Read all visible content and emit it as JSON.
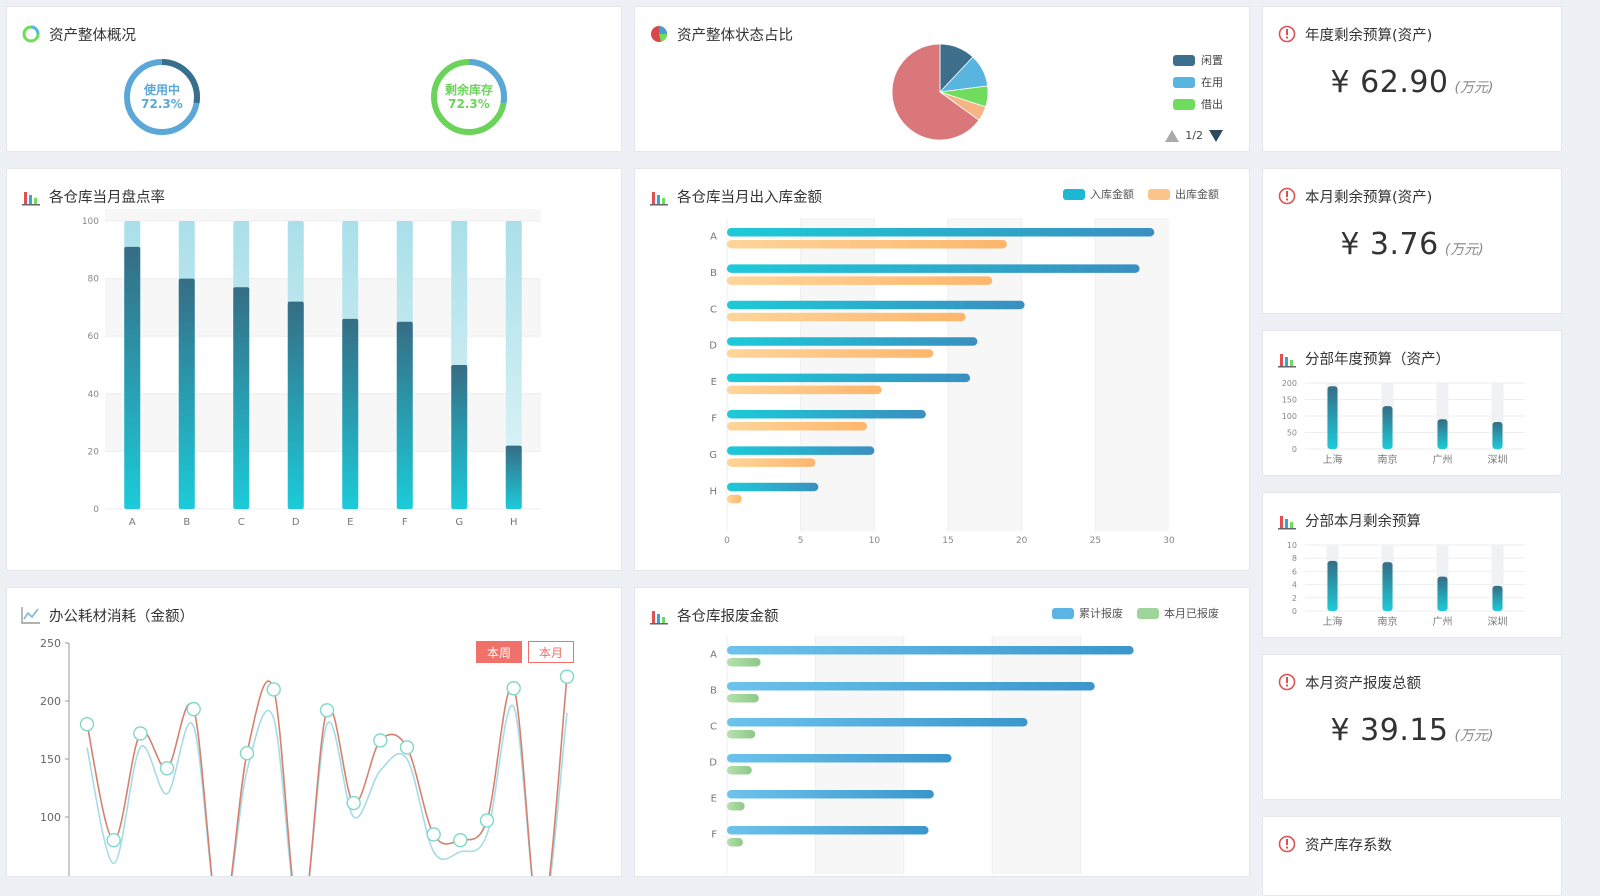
{
  "overview": {
    "title": "资产整体概况",
    "rings": [
      {
        "label": "使用中",
        "value_text": "72.3%",
        "value": 72.3,
        "color": "#5ba8d8",
        "dark": "#3a6f8c"
      },
      {
        "label": "剩余库存",
        "value_text": "72.3%",
        "value": 72.3,
        "color": "#6cd35a",
        "dark": "#5ba8d8"
      }
    ]
  },
  "status_pie": {
    "title": "资产整体状态占比",
    "legend": [
      {
        "name": "闲置",
        "color": "#3d6e8c"
      },
      {
        "name": "在用",
        "color": "#5ab4e0"
      },
      {
        "name": "借出",
        "color": "#6fdc5e"
      }
    ],
    "page_text": "1/2",
    "slices": [
      {
        "value": 12,
        "color": "#3d6e8c"
      },
      {
        "value": 11,
        "color": "#5ab4e0"
      },
      {
        "value": 7,
        "color": "#6fdc5e"
      },
      {
        "value": 5,
        "color": "#f6b485"
      },
      {
        "value": 65,
        "color": "#d9777b"
      }
    ]
  },
  "budgets": [
    {
      "title": "年度剩余预算(资产)",
      "amount": "¥ 62.90",
      "unit": "(万元)"
    },
    {
      "title": "本月剩余预算(资产)",
      "amount": "¥ 3.76",
      "unit": "(万元)"
    },
    {
      "title": "本月资产报废总额",
      "amount": "¥ 39.15",
      "unit": "(万元)"
    },
    {
      "title": "资产库存系数"
    }
  ],
  "inventory_rate": {
    "title": "各仓库当月盘点率",
    "chart_data": {
      "type": "bar",
      "categories": [
        "A",
        "B",
        "C",
        "D",
        "E",
        "F",
        "G",
        "H"
      ],
      "values": [
        91,
        80,
        77,
        72,
        66,
        65,
        50,
        22
      ],
      "max": 100,
      "ylim": [
        0,
        100
      ],
      "yticks": [
        "0",
        "20",
        "40",
        "60",
        "80",
        "100"
      ]
    }
  },
  "io_amount": {
    "title": "各仓库当月出入库金额",
    "legend": [
      {
        "name": "入库金额",
        "color": "#1cb8d3"
      },
      {
        "name": "出库金额",
        "color": "#fdc48a"
      }
    ],
    "chart_data": {
      "type": "bar",
      "orientation": "horizontal",
      "categories": [
        "A",
        "B",
        "C",
        "D",
        "E",
        "F",
        "G",
        "H"
      ],
      "series": [
        {
          "name": "入库金额",
          "values": [
            29,
            28,
            20.2,
            17,
            16.5,
            13.5,
            10,
            6.2
          ]
        },
        {
          "name": "出库金额",
          "values": [
            19,
            18,
            16.2,
            14,
            10.5,
            9.5,
            6,
            1
          ]
        }
      ],
      "xlim": [
        0,
        30
      ],
      "xticks": [
        "0",
        "5",
        "10",
        "15",
        "20",
        "25",
        "30"
      ]
    }
  },
  "branch_year_budget": {
    "title": "分部年度预算（资产）",
    "chart_data": {
      "type": "bar",
      "categories": [
        "上海",
        "南京",
        "广州",
        "深圳"
      ],
      "values": [
        190,
        130,
        90,
        82
      ],
      "ylim": [
        0,
        200
      ],
      "yticks": [
        "0",
        "50",
        "100",
        "150",
        "200"
      ]
    }
  },
  "branch_month_budget": {
    "title": "分部本月剩余预算",
    "chart_data": {
      "type": "bar",
      "categories": [
        "上海",
        "南京",
        "广州",
        "深圳"
      ],
      "values": [
        7.6,
        7.4,
        5.2,
        3.8
      ],
      "ylim": [
        0,
        10
      ],
      "yticks": [
        "0",
        "2",
        "4",
        "6",
        "8",
        "10"
      ]
    }
  },
  "office_supplies": {
    "title": "办公耗材消耗（金额）",
    "tabs": [
      {
        "label": "本周",
        "active": true
      },
      {
        "label": "本月",
        "active": false
      }
    ],
    "chart_data": {
      "type": "line",
      "ylim": [
        60,
        250
      ],
      "yticks": [
        "100",
        "150",
        "200",
        "250"
      ],
      "series": [
        {
          "name": "s1",
          "color": "#d4826f",
          "values": [
            180,
            80,
            172,
            142,
            193,
            5,
            155,
            210,
            5,
            192,
            112,
            166,
            160,
            85,
            80,
            97,
            211,
            5,
            221
          ]
        },
        {
          "name": "s2",
          "color": "#a5dce6",
          "values": [
            160,
            60,
            160,
            120,
            178,
            5,
            140,
            185,
            5,
            180,
            100,
            140,
            150,
            70,
            70,
            85,
            195,
            5,
            190
          ]
        }
      ],
      "markers_series": 0
    }
  },
  "scrap_amount": {
    "title": "各仓库报废金额",
    "legend": [
      {
        "name": "累计报废",
        "color": "#5bb4e6"
      },
      {
        "name": "本月已报废",
        "color": "#9fd49a"
      }
    ],
    "chart_data": {
      "type": "bar",
      "orientation": "horizontal",
      "categories": [
        "A",
        "B",
        "C",
        "D",
        "E",
        "F"
      ],
      "series": [
        {
          "name": "累计报废",
          "values": [
            23,
            20.8,
            17,
            12.7,
            11.7,
            11.4
          ]
        },
        {
          "name": "本月已报废",
          "values": [
            1.9,
            1.8,
            1.6,
            1.4,
            1.0,
            0.9
          ]
        }
      ],
      "xlim": [
        0,
        25
      ]
    }
  }
}
